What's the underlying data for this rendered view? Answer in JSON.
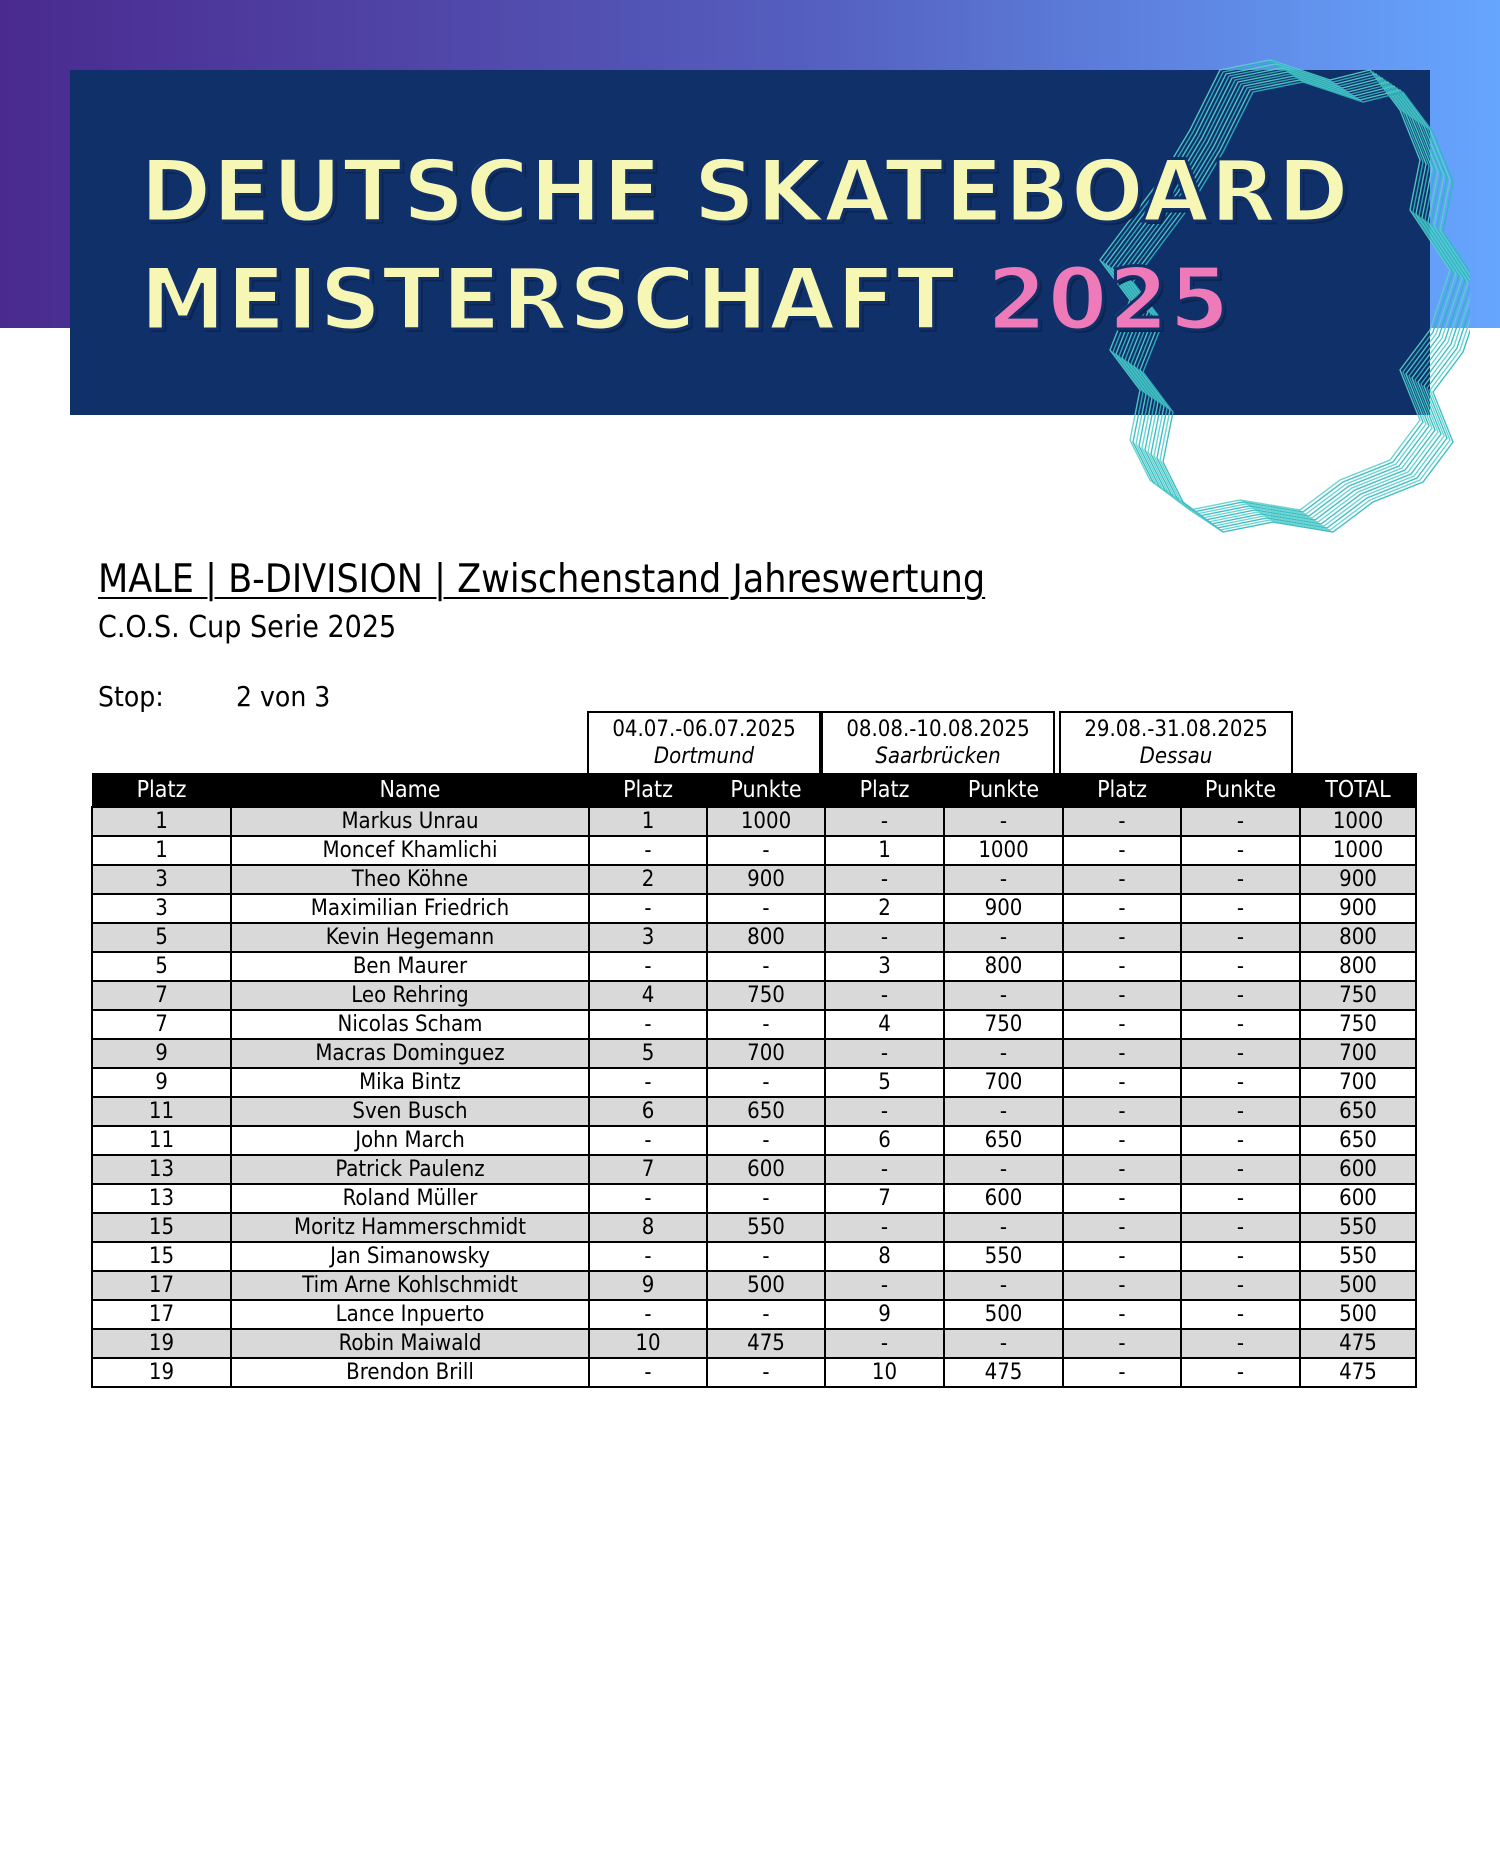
{
  "banner": {
    "title_line1": "DEUTSCHE SKATEBOARD",
    "title_line2": "MEISTERSCHAFT",
    "year": "2025",
    "colors": {
      "navy": "#10306a",
      "cream": "#f7f7b5",
      "pink": "#ef7ab9",
      "teal": "#2bb7c4"
    }
  },
  "heading": "MALE | B-DIVISION | Zwischenstand Jahreswertung",
  "subheading": "C.O.S. Cup Serie 2025",
  "stop": {
    "label": "Stop:",
    "value": "2 von 3"
  },
  "events": [
    {
      "date": "04.07.-06.07.2025",
      "city": "Dortmund"
    },
    {
      "date": "08.08.-10.08.2025",
      "city": "Saarbrücken"
    },
    {
      "date": "29.08.-31.08.2025",
      "city": "Dessau"
    }
  ],
  "table": {
    "headers": [
      "Platz",
      "Name",
      "Platz",
      "Punkte",
      "Platz",
      "Punkte",
      "Platz",
      "Punkte",
      "TOTAL"
    ],
    "rows": [
      [
        "1",
        "Markus Unrau",
        "1",
        "1000",
        "-",
        "-",
        "-",
        "-",
        "1000"
      ],
      [
        "1",
        "Moncef Khamlichi",
        "-",
        "-",
        "1",
        "1000",
        "-",
        "-",
        "1000"
      ],
      [
        "3",
        "Theo Köhne",
        "2",
        "900",
        "-",
        "-",
        "-",
        "-",
        "900"
      ],
      [
        "3",
        "Maximilian Friedrich",
        "-",
        "-",
        "2",
        "900",
        "-",
        "-",
        "900"
      ],
      [
        "5",
        "Kevin Hegemann",
        "3",
        "800",
        "-",
        "-",
        "-",
        "-",
        "800"
      ],
      [
        "5",
        "Ben Maurer",
        "-",
        "-",
        "3",
        "800",
        "-",
        "-",
        "800"
      ],
      [
        "7",
        "Leo Rehring",
        "4",
        "750",
        "-",
        "-",
        "-",
        "-",
        "750"
      ],
      [
        "7",
        "Nicolas Scham",
        "-",
        "-",
        "4",
        "750",
        "-",
        "-",
        "750"
      ],
      [
        "9",
        "Macras Dominguez",
        "5",
        "700",
        "-",
        "-",
        "-",
        "-",
        "700"
      ],
      [
        "9",
        "Mika Bintz",
        "-",
        "-",
        "5",
        "700",
        "-",
        "-",
        "700"
      ],
      [
        "11",
        "Sven Busch",
        "6",
        "650",
        "-",
        "-",
        "-",
        "-",
        "650"
      ],
      [
        "11",
        "John March",
        "-",
        "-",
        "6",
        "650",
        "-",
        "-",
        "650"
      ],
      [
        "13",
        "Patrick Paulenz",
        "7",
        "600",
        "-",
        "-",
        "-",
        "-",
        "600"
      ],
      [
        "13",
        "Roland Müller",
        "-",
        "-",
        "7",
        "600",
        "-",
        "-",
        "600"
      ],
      [
        "15",
        "Moritz Hammerschmidt",
        "8",
        "550",
        "-",
        "-",
        "-",
        "-",
        "550"
      ],
      [
        "15",
        "Jan Simanowsky",
        "-",
        "-",
        "8",
        "550",
        "-",
        "-",
        "550"
      ],
      [
        "17",
        "Tim Arne Kohlschmidt",
        "9",
        "500",
        "-",
        "-",
        "-",
        "-",
        "500"
      ],
      [
        "17",
        "Lance Inpuerto",
        "-",
        "-",
        "9",
        "500",
        "-",
        "-",
        "500"
      ],
      [
        "19",
        "Robin Maiwald",
        "10",
        "475",
        "-",
        "-",
        "-",
        "-",
        "475"
      ],
      [
        "19",
        "Brendon Brill",
        "-",
        "-",
        "10",
        "475",
        "-",
        "-",
        "475"
      ]
    ]
  }
}
